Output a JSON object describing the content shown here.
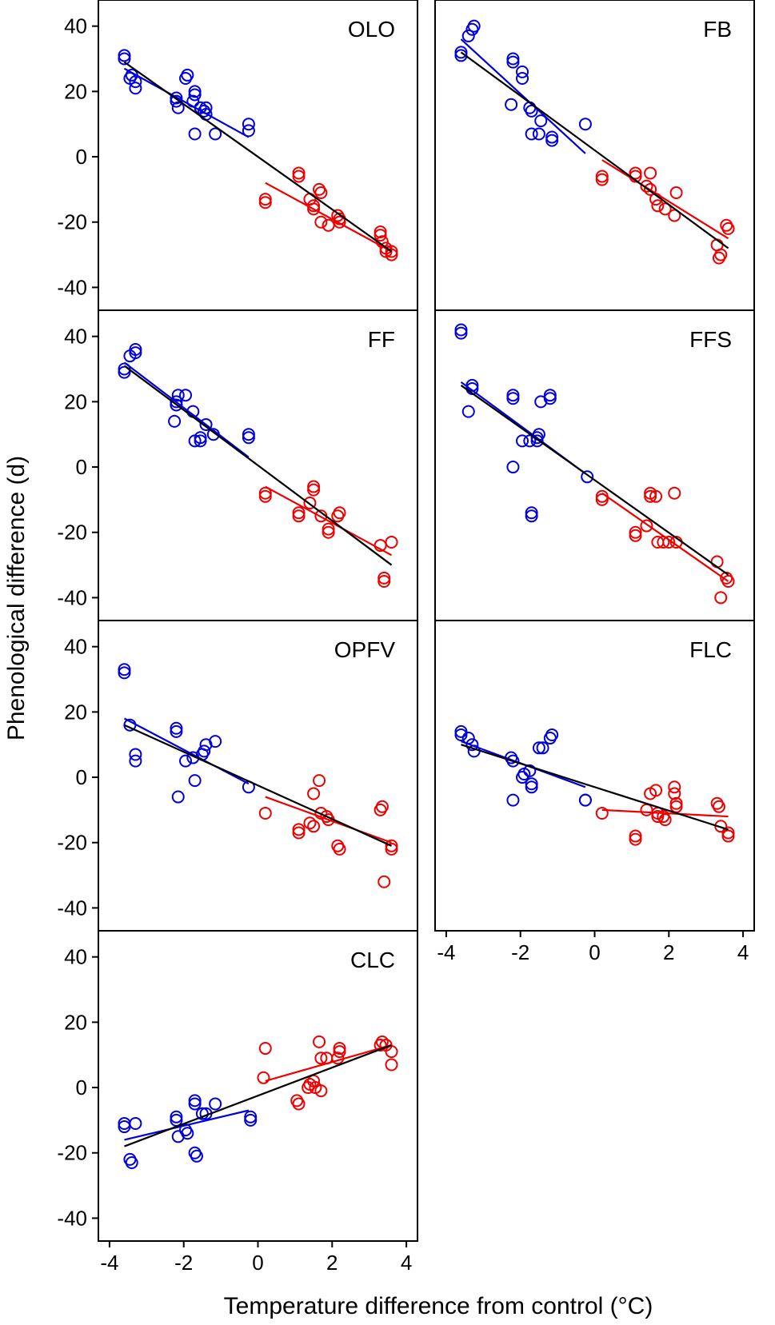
{
  "figure": {
    "ylabel": "Phenological difference (d)",
    "xlabel": "Temperature difference from control (°C)",
    "colors": {
      "cool": "#0000dd",
      "warm": "#ee0000",
      "fit": "#000000"
    }
  },
  "chart_data": [
    {
      "type": "scatter",
      "title": "OLO",
      "xlim": [
        -4.3,
        4.3
      ],
      "ylim": [
        -47,
        48
      ],
      "xticks": [
        "-4",
        "-2",
        "0",
        "2",
        "4"
      ],
      "yticks": [
        "40",
        "20",
        "0",
        "-20",
        "-40"
      ],
      "series": [
        {
          "name": "cooling",
          "color": "#0000dd",
          "x": [
            -3.6,
            -3.6,
            -3.45,
            -3.4,
            -3.3,
            -3.3,
            -2.2,
            -2.2,
            -2.15,
            -1.95,
            -1.9,
            -1.75,
            -1.7,
            -1.7,
            -1.7,
            -1.55,
            -1.45,
            -1.4,
            -1.4,
            -1.15,
            -0.25,
            -0.25
          ],
          "y": [
            30,
            31,
            24,
            25,
            23,
            21,
            17,
            18,
            15,
            24,
            25,
            17,
            19,
            20,
            7,
            15,
            14,
            15,
            13,
            7,
            10,
            8
          ]
        },
        {
          "name": "warming",
          "color": "#ee0000",
          "x": [
            0.2,
            0.2,
            1.1,
            1.1,
            1.4,
            1.5,
            1.5,
            1.65,
            1.7,
            1.7,
            1.9,
            2.15,
            2.2,
            2.2,
            3.3,
            3.3,
            3.35,
            3.45,
            3.45,
            3.6,
            3.6
          ],
          "y": [
            -13,
            -14,
            -5,
            -6,
            -13,
            -15,
            -16,
            -10,
            -11,
            -20,
            -21,
            -18,
            -19,
            -20,
            -24,
            -23,
            -26,
            -28,
            -29,
            -29,
            -30
          ]
        }
      ],
      "fits": [
        {
          "name": "cooling fit",
          "color": "#0000dd",
          "x": [
            -3.6,
            -0.25
          ],
          "y": [
            27,
            6
          ]
        },
        {
          "name": "warming fit",
          "color": "#ee0000",
          "x": [
            0.2,
            3.6
          ],
          "y": [
            -8,
            -29
          ]
        },
        {
          "name": "overall fit",
          "color": "#000000",
          "x": [
            -3.6,
            3.6
          ],
          "y": [
            29,
            -29
          ]
        }
      ]
    },
    {
      "type": "scatter",
      "title": "FB",
      "xlim": [
        -4.3,
        4.3
      ],
      "ylim": [
        -47,
        48
      ],
      "xticks": [
        "-4",
        "-2",
        "0",
        "2",
        "4"
      ],
      "yticks": [
        "40",
        "20",
        "0",
        "-20",
        "-40"
      ],
      "series": [
        {
          "name": "cooling",
          "color": "#0000dd",
          "x": [
            -3.6,
            -3.6,
            -3.4,
            -3.3,
            -3.25,
            -2.2,
            -2.2,
            -2.25,
            -1.95,
            -1.95,
            -1.75,
            -1.7,
            -1.7,
            -1.5,
            -1.45,
            -1.15,
            -1.15,
            -0.25
          ],
          "y": [
            31,
            32,
            37,
            39,
            40,
            29,
            30,
            16,
            24,
            26,
            15,
            14,
            7,
            7,
            11,
            6,
            5,
            10
          ]
        },
        {
          "name": "warming",
          "color": "#ee0000",
          "x": [
            0.2,
            0.2,
            1.1,
            1.1,
            1.4,
            1.5,
            1.5,
            1.65,
            1.7,
            1.9,
            2.15,
            2.2,
            3.3,
            3.35,
            3.4,
            3.55,
            3.6
          ],
          "y": [
            -6,
            -7,
            -5,
            -6,
            -9,
            -5,
            -10,
            -13,
            -15,
            -16,
            -18,
            -11,
            -27,
            -31,
            -30,
            -21,
            -22
          ]
        }
      ],
      "fits": [
        {
          "name": "cooling fit",
          "color": "#0000dd",
          "x": [
            -3.6,
            -0.25
          ],
          "y": [
            36,
            1
          ]
        },
        {
          "name": "warming fit",
          "color": "#ee0000",
          "x": [
            0.2,
            3.6
          ],
          "y": [
            -1,
            -25
          ]
        },
        {
          "name": "overall fit",
          "color": "#000000",
          "x": [
            -3.6,
            3.6
          ],
          "y": [
            32,
            -28
          ]
        }
      ]
    },
    {
      "type": "scatter",
      "title": "FF",
      "xlim": [
        -4.3,
        4.3
      ],
      "ylim": [
        -47,
        48
      ],
      "xticks": [
        "-4",
        "-2",
        "0",
        "2",
        "4"
      ],
      "yticks": [
        "40",
        "20",
        "0",
        "-20",
        "-40"
      ],
      "series": [
        {
          "name": "cooling",
          "color": "#0000dd",
          "x": [
            -3.6,
            -3.6,
            -3.45,
            -3.3,
            -3.3,
            -2.25,
            -2.2,
            -2.15,
            -2.2,
            -1.95,
            -1.75,
            -1.7,
            -1.55,
            -1.55,
            -1.4,
            -1.2,
            -0.25,
            -0.25
          ],
          "y": [
            29,
            30,
            34,
            36,
            35,
            14,
            20,
            22,
            19,
            22,
            17,
            8,
            8,
            9,
            13,
            10,
            9,
            10
          ]
        },
        {
          "name": "warming",
          "color": "#ee0000",
          "x": [
            0.2,
            0.2,
            1.1,
            1.1,
            1.4,
            1.5,
            1.5,
            1.7,
            1.9,
            1.9,
            2.15,
            2.2,
            3.3,
            3.4,
            3.4,
            3.6
          ],
          "y": [
            -8,
            -9,
            -14,
            -15,
            -11,
            -6,
            -7,
            -15,
            -19,
            -20,
            -15,
            -14,
            -24,
            -35,
            -34,
            -23
          ]
        }
      ],
      "fits": [
        {
          "name": "cooling fit",
          "color": "#0000dd",
          "x": [
            -3.6,
            -0.25
          ],
          "y": [
            32,
            3
          ]
        },
        {
          "name": "warming fit",
          "color": "#ee0000",
          "x": [
            0.2,
            3.6
          ],
          "y": [
            -6,
            -27
          ]
        },
        {
          "name": "overall fit",
          "color": "#000000",
          "x": [
            -3.6,
            3.6
          ],
          "y": [
            31,
            -30
          ]
        }
      ]
    },
    {
      "type": "scatter",
      "title": "FFS",
      "xlim": [
        -4.3,
        4.3
      ],
      "ylim": [
        -47,
        48
      ],
      "xticks": [
        "-4",
        "-2",
        "0",
        "2",
        "4"
      ],
      "yticks": [
        "40",
        "20",
        "0",
        "-20",
        "-40"
      ],
      "series": [
        {
          "name": "cooling",
          "color": "#0000dd",
          "x": [
            -3.6,
            -3.6,
            -3.4,
            -3.3,
            -3.3,
            -2.2,
            -2.2,
            -2.2,
            -1.95,
            -1.75,
            -1.7,
            -1.7,
            -1.55,
            -1.55,
            -1.5,
            -1.45,
            -1.2,
            -1.2,
            -0.2
          ],
          "y": [
            41,
            42,
            17,
            25,
            24,
            22,
            21,
            0,
            8,
            8,
            -14,
            -15,
            9,
            8,
            10,
            20,
            22,
            21,
            -3
          ]
        },
        {
          "name": "warming",
          "color": "#ee0000",
          "x": [
            0.2,
            0.2,
            1.1,
            1.1,
            1.4,
            1.5,
            1.5,
            1.65,
            1.7,
            1.85,
            2.0,
            2.15,
            2.2,
            3.3,
            3.4,
            3.55,
            3.6
          ],
          "y": [
            -9,
            -10,
            -20,
            -21,
            -18,
            -8,
            -9,
            -9,
            -23,
            -23,
            -23,
            -8,
            -23,
            -29,
            -40,
            -34,
            -35
          ]
        }
      ],
      "fits": [
        {
          "name": "cooling fit",
          "color": "#0000dd",
          "x": [
            -3.6,
            -0.25
          ],
          "y": [
            26,
            -2
          ]
        },
        {
          "name": "warming fit",
          "color": "#ee0000",
          "x": [
            0.2,
            3.6
          ],
          "y": [
            -8,
            -35
          ]
        },
        {
          "name": "overall fit",
          "color": "#000000",
          "x": [
            -3.6,
            3.6
          ],
          "y": [
            25,
            -33
          ]
        }
      ]
    },
    {
      "type": "scatter",
      "title": "OPFV",
      "xlim": [
        -4.3,
        4.3
      ],
      "ylim": [
        -47,
        48
      ],
      "xticks": [
        "-4",
        "-2",
        "0",
        "2",
        "4"
      ],
      "yticks": [
        "40",
        "20",
        "0",
        "-20",
        "-40"
      ],
      "series": [
        {
          "name": "cooling",
          "color": "#0000dd",
          "x": [
            -3.6,
            -3.6,
            -3.45,
            -3.3,
            -3.3,
            -2.2,
            -2.2,
            -2.15,
            -1.95,
            -1.75,
            -1.7,
            -1.5,
            -1.45,
            -1.4,
            -1.15,
            -0.25
          ],
          "y": [
            32,
            33,
            16,
            5,
            7,
            14,
            15,
            -6,
            5,
            6,
            -1,
            7,
            8,
            10,
            11,
            -3
          ]
        },
        {
          "name": "warming",
          "color": "#ee0000",
          "x": [
            0.2,
            1.1,
            1.1,
            1.4,
            1.5,
            1.5,
            1.65,
            1.7,
            1.85,
            1.9,
            2.15,
            2.2,
            3.3,
            3.35,
            3.4,
            3.6,
            3.6
          ],
          "y": [
            -11,
            -16,
            -17,
            -14,
            -15,
            -5,
            -1,
            -11,
            -12,
            -13,
            -21,
            -22,
            -10,
            -9,
            -32,
            -21,
            -22
          ]
        }
      ],
      "fits": [
        {
          "name": "cooling fit",
          "color": "#0000dd",
          "x": [
            -3.6,
            -0.25
          ],
          "y": [
            18,
            -2
          ]
        },
        {
          "name": "warming fit",
          "color": "#ee0000",
          "x": [
            0.2,
            3.6
          ],
          "y": [
            -6,
            -20
          ]
        },
        {
          "name": "overall fit",
          "color": "#000000",
          "x": [
            -3.6,
            3.6
          ],
          "y": [
            16,
            -21
          ]
        }
      ]
    },
    {
      "type": "scatter",
      "title": "FLC",
      "xlim": [
        -4.3,
        4.3
      ],
      "ylim": [
        -47,
        48
      ],
      "xticks": [
        "-4",
        "-2",
        "0",
        "2",
        "4"
      ],
      "yticks": [
        "40",
        "20",
        "0",
        "-20",
        "-40"
      ],
      "series": [
        {
          "name": "cooling",
          "color": "#0000dd",
          "x": [
            -3.6,
            -3.6,
            -3.4,
            -3.3,
            -3.25,
            -2.2,
            -2.25,
            -2.2,
            -1.95,
            -1.9,
            -1.75,
            -1.7,
            -1.7,
            -1.5,
            -1.4,
            -1.2,
            -1.15,
            -0.25,
            -0.25
          ],
          "y": [
            13,
            14,
            12,
            10,
            8,
            5,
            6,
            -7,
            0,
            1,
            2,
            -3,
            -2,
            9,
            9,
            12,
            13,
            -7,
            -7
          ]
        },
        {
          "name": "warming",
          "color": "#ee0000",
          "x": [
            0.2,
            1.1,
            1.1,
            1.4,
            1.5,
            1.65,
            1.7,
            1.7,
            1.85,
            1.9,
            2.15,
            2.15,
            2.2,
            2.2,
            3.3,
            3.35,
            3.4,
            3.6,
            3.6
          ],
          "y": [
            -11,
            -18,
            -19,
            -10,
            -5,
            -4,
            -11,
            -12,
            -12,
            -13,
            -3,
            -5,
            -8,
            -9,
            -8,
            -9,
            -15,
            -17,
            -18
          ]
        }
      ],
      "fits": [
        {
          "name": "cooling fit",
          "color": "#0000dd",
          "x": [
            -3.6,
            -0.25
          ],
          "y": [
            11,
            -3
          ]
        },
        {
          "name": "warming fit",
          "color": "#ee0000",
          "x": [
            0.2,
            3.6
          ],
          "y": [
            -10,
            -12
          ]
        },
        {
          "name": "overall fit",
          "color": "#000000",
          "x": [
            -3.6,
            3.6
          ],
          "y": [
            10,
            -16
          ]
        }
      ]
    },
    {
      "type": "scatter",
      "title": "CLC",
      "xlim": [
        -4.3,
        4.3
      ],
      "ylim": [
        -47,
        48
      ],
      "xticks": [
        "-4",
        "-2",
        "0",
        "2",
        "4"
      ],
      "yticks": [
        "40",
        "20",
        "0",
        "-20",
        "-40"
      ],
      "series": [
        {
          "name": "cooling",
          "color": "#0000dd",
          "x": [
            -3.6,
            -3.6,
            -3.45,
            -3.4,
            -3.3,
            -2.2,
            -2.2,
            -2.15,
            -1.95,
            -1.9,
            -1.7,
            -1.7,
            -1.7,
            -1.65,
            -1.5,
            -1.4,
            -1.15,
            -0.2,
            -0.2
          ],
          "y": [
            -11,
            -12,
            -22,
            -23,
            -11,
            -10,
            -9,
            -15,
            -13,
            -14,
            -4,
            -5,
            -20,
            -21,
            -8,
            -8,
            -5,
            -9,
            -10
          ]
        },
        {
          "name": "warming",
          "color": "#ee0000",
          "x": [
            0.15,
            0.2,
            1.05,
            1.1,
            1.35,
            1.4,
            1.5,
            1.55,
            1.65,
            1.7,
            1.7,
            1.85,
            2.15,
            2.2,
            2.2,
            3.3,
            3.35,
            3.45,
            3.6,
            3.6
          ],
          "y": [
            3,
            12,
            -4,
            -5,
            0,
            1,
            2,
            0,
            14,
            9,
            -1,
            9,
            9,
            11,
            12,
            13,
            14,
            13,
            11,
            7
          ]
        }
      ],
      "fits": [
        {
          "name": "cooling fit",
          "color": "#0000dd",
          "x": [
            -3.6,
            -0.25
          ],
          "y": [
            -16,
            -7
          ]
        },
        {
          "name": "warming fit",
          "color": "#ee0000",
          "x": [
            0.2,
            3.6
          ],
          "y": [
            2,
            13
          ]
        },
        {
          "name": "overall fit",
          "color": "#000000",
          "x": [
            -3.6,
            3.6
          ],
          "y": [
            -18,
            13
          ]
        }
      ]
    }
  ]
}
